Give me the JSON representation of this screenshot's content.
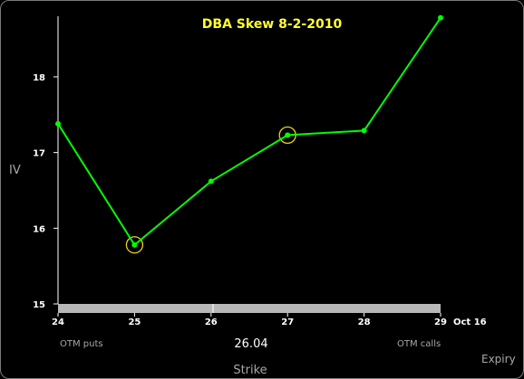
{
  "chart_data": {
    "type": "line",
    "title": "DBA Skew 8-2-2010",
    "xlabel": "Strike",
    "ylabel": "IV",
    "x": [
      24,
      25,
      26,
      27,
      28,
      29
    ],
    "series": [
      {
        "values": [
          17.38,
          15.78,
          16.62,
          17.23,
          17.29,
          18.78
        ]
      }
    ],
    "highlighted_x": [
      25,
      27
    ],
    "xlim": [
      24,
      29
    ],
    "ylim": [
      15,
      18.8
    ],
    "yticks": [
      15,
      16,
      17,
      18
    ],
    "xticks": [
      24,
      25,
      26,
      27,
      28,
      29
    ],
    "expiry_label": "Oct 16",
    "left_note": "OTM puts",
    "right_note": "OTM calls",
    "center_value": "26.04",
    "expiry_axis_label": "Expiry",
    "grid": false,
    "line_color": "#00ff00",
    "title_color": "#ffff33",
    "highlight_color": "#e8d21c"
  }
}
